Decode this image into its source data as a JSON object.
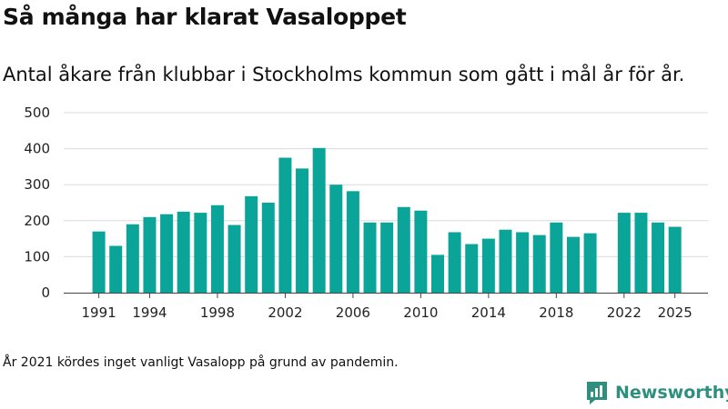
{
  "header": {
    "title": "Så många har klarat Vasaloppet",
    "subtitle": "Antal åkare från klubbar i Stockholms kommun som gått i mål år för år."
  },
  "footer": {
    "note": "År 2021 kördes inget vanligt Vasalopp på grund av pandemin.",
    "brand": "Newsworthy",
    "brand_icon": "bar-chart-logo-icon"
  },
  "colors": {
    "bar": "#0aa598",
    "grid": "#dcdcdc",
    "axis": "#444444",
    "brand": "#2e8f7e"
  },
  "chart_data": {
    "type": "bar",
    "title": "Så många har klarat Vasaloppet",
    "xlabel": "",
    "ylabel": "",
    "ylim": [
      0,
      500
    ],
    "yticks": [
      0,
      100,
      200,
      300,
      400,
      500
    ],
    "xticks": [
      1991,
      1994,
      1998,
      2002,
      2006,
      2010,
      2014,
      2018,
      2022,
      2025
    ],
    "categories": [
      1991,
      1992,
      1993,
      1994,
      1995,
      1996,
      1997,
      1998,
      1999,
      2000,
      2001,
      2002,
      2003,
      2004,
      2005,
      2006,
      2007,
      2008,
      2009,
      2010,
      2011,
      2012,
      2013,
      2014,
      2015,
      2016,
      2017,
      2018,
      2019,
      2020,
      2021,
      2022,
      2023,
      2024,
      2025
    ],
    "values": [
      170,
      130,
      190,
      210,
      218,
      225,
      222,
      243,
      188,
      268,
      250,
      375,
      345,
      402,
      300,
      282,
      195,
      195,
      238,
      228,
      105,
      168,
      135,
      150,
      175,
      168,
      160,
      195,
      155,
      165,
      null,
      222,
      222,
      195,
      183
    ]
  }
}
